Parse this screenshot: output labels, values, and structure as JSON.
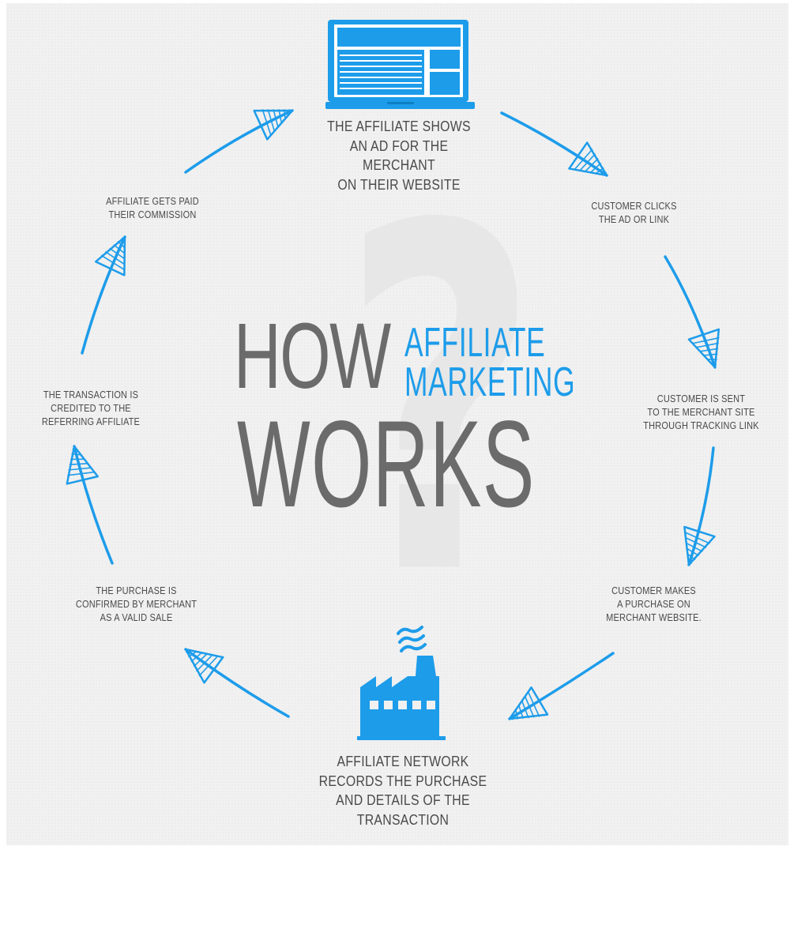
{
  "title": {
    "how": "HOW",
    "line1": "AFFILIATE",
    "line2": "MARKETING",
    "works": "WORKS"
  },
  "steps": [
    {
      "text": "THE AFFILIATE SHOWS\nAN AD FOR THE MERCHANT\nON THEIR WEBSITE",
      "icon": "laptop-icon"
    },
    {
      "text": "CUSTOMER CLICKS\nTHE AD OR LINK"
    },
    {
      "text": "CUSTOMER IS SENT\nTO THE MERCHANT SITE\nTHROUGH TRACKING LINK"
    },
    {
      "text": "CUSTOMER MAKES\nA PURCHASE ON\nMERCHANT WEBSITE."
    },
    {
      "text": "AFFILIATE NETWORK\nRECORDS THE PURCHASE\nAND DETAILS OF THE\nTRANSACTION",
      "icon": "factory-icon"
    },
    {
      "text": "THE PURCHASE IS\nCONFIRMED BY MERCHANT\nAS A VALID SALE"
    },
    {
      "text": "THE TRANSACTION IS\nCREDITED TO THE\nREFERRING AFFILIATE"
    },
    {
      "text": "AFFILIATE GETS PAID\nTHEIR COMMISSION"
    }
  ],
  "colors": {
    "accent": "#1d9cea",
    "title_gray": "#6b6b6b",
    "label_gray": "#4a4a4a",
    "panel_bg": "#f1f1f1",
    "question_mark": "#e7e7e7"
  },
  "decor": {
    "background_glyph": "?"
  }
}
